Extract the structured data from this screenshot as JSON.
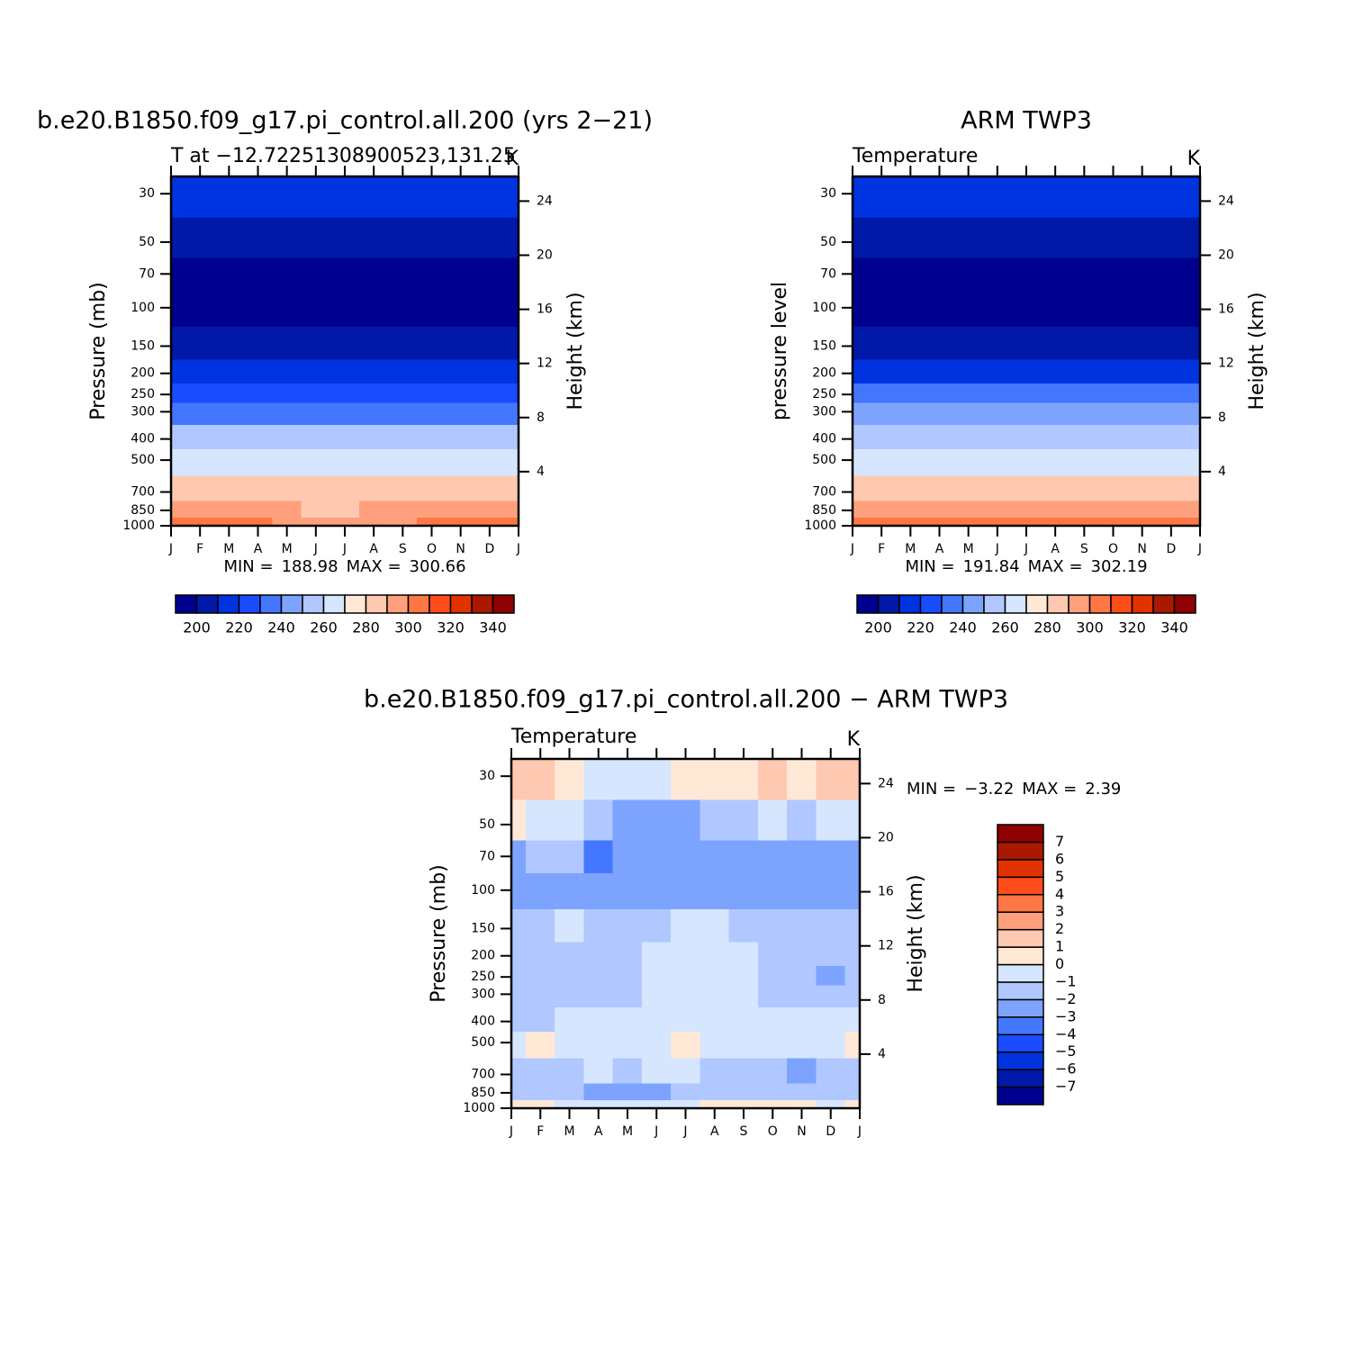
{
  "chart_data": [
    {
      "type": "contour",
      "title": "b.e20.B1850.f09_g17.pi_control.all.200 (yrs 2−21)",
      "subtitle": "T at −12.72251308900523,131.25",
      "units": "K",
      "ylabel": "Pressure (mb)",
      "y2label": "Height (km)",
      "min_label": "MIN =",
      "min": 188.98,
      "max_label": "MAX =",
      "max": 300.66,
      "x": [
        "J",
        "F",
        "M",
        "A",
        "M",
        "J",
        "J",
        "A",
        "S",
        "O",
        "N",
        "D",
        "J"
      ],
      "y": [
        30,
        50,
        70,
        100,
        150,
        200,
        250,
        300,
        400,
        500,
        700,
        850,
        1000
      ],
      "ylim": [
        1000,
        25
      ],
      "log_y": true,
      "yticks": [
        30,
        50,
        70,
        100,
        150,
        200,
        250,
        300,
        400,
        500,
        700,
        850,
        1000
      ],
      "y2ticks": [
        4,
        8,
        12,
        16,
        20,
        24
      ],
      "values": [
        [
          216,
          216,
          215,
          214,
          213,
          212,
          212,
          213,
          214,
          215,
          216,
          216,
          216
        ],
        [
          204,
          204,
          203,
          203,
          202,
          201,
          201,
          201,
          202,
          203,
          203,
          204,
          204
        ],
        [
          196,
          196,
          195,
          195,
          194,
          194,
          193,
          193,
          194,
          195,
          195,
          196,
          196
        ],
        [
          191,
          191,
          190,
          190,
          190,
          190,
          189,
          189,
          190,
          190,
          190,
          191,
          191
        ],
        [
          202,
          202,
          202,
          202,
          201,
          202,
          202,
          202,
          201,
          201,
          202,
          202,
          202
        ],
        [
          217,
          217,
          217,
          217,
          216,
          217,
          217,
          217,
          216,
          216,
          217,
          217,
          217
        ],
        [
          229,
          229,
          229,
          229,
          228,
          229,
          229,
          229,
          228,
          228,
          229,
          229,
          229
        ],
        [
          239,
          239,
          239,
          239,
          238,
          239,
          239,
          239,
          238,
          238,
          239,
          239,
          239
        ],
        [
          255,
          255,
          255,
          255,
          254,
          255,
          255,
          255,
          254,
          254,
          255,
          255,
          255
        ],
        [
          267,
          267,
          267,
          267,
          266,
          267,
          267,
          267,
          266,
          266,
          267,
          267,
          267
        ],
        [
          282,
          282,
          282,
          281,
          281,
          281,
          281,
          281,
          281,
          280,
          281,
          282,
          282
        ],
        [
          291,
          291,
          291,
          291,
          290,
          289,
          289,
          290,
          290,
          291,
          291,
          291,
          291
        ],
        [
          300,
          300,
          300,
          300,
          299,
          299,
          299,
          299,
          299,
          300,
          300,
          300,
          300
        ]
      ],
      "colorbar": {
        "levels": [
          200,
          210,
          220,
          230,
          240,
          250,
          260,
          270,
          280,
          290,
          300,
          310,
          320,
          330,
          340
        ],
        "ticks": [
          200,
          220,
          240,
          260,
          280,
          300,
          320,
          340
        ],
        "colors": [
          "#00008f",
          "#0019a8",
          "#0033e0",
          "#1a4cff",
          "#4477ff",
          "#7ca4ff",
          "#b0c8ff",
          "#d6e6ff",
          "#ffe8d6",
          "#ffc8b0",
          "#ffa07c",
          "#ff7744",
          "#ff4d1a",
          "#e03300",
          "#a81900",
          "#8f0000"
        ]
      }
    },
    {
      "type": "contour",
      "title": "ARM TWP3",
      "subtitle": "Temperature",
      "units": "K",
      "ylabel": "pressure level",
      "y2label": "Height (km)",
      "min_label": "MIN =",
      "min": 191.84,
      "max_label": "MAX =",
      "max": 302.19,
      "x": [
        "J",
        "F",
        "M",
        "A",
        "M",
        "J",
        "J",
        "A",
        "S",
        "O",
        "N",
        "D",
        "J"
      ],
      "y": [
        30,
        50,
        70,
        100,
        150,
        200,
        250,
        300,
        400,
        500,
        700,
        850,
        1000
      ],
      "ylim": [
        1000,
        25
      ],
      "log_y": true,
      "yticks": [
        30,
        50,
        70,
        100,
        150,
        200,
        250,
        300,
        400,
        500,
        700,
        850,
        1000
      ],
      "y2ticks": [
        4,
        8,
        12,
        16,
        20,
        24
      ],
      "values": [
        [
          215,
          215,
          214,
          213,
          212,
          211,
          211,
          211,
          212,
          213,
          214,
          215,
          215
        ],
        [
          204,
          204,
          204,
          203,
          202,
          202,
          201,
          200,
          201,
          202,
          203,
          204,
          204
        ],
        [
          196,
          196,
          196,
          195,
          195,
          195,
          194,
          193,
          194,
          195,
          196,
          196,
          196
        ],
        [
          192,
          192,
          192,
          191,
          191,
          191,
          191,
          190,
          191,
          191,
          192,
          192,
          192
        ],
        [
          204,
          204,
          204,
          204,
          204,
          204,
          204,
          204,
          204,
          204,
          204,
          204,
          204
        ],
        [
          218,
          218,
          218,
          218,
          218,
          218,
          218,
          218,
          218,
          218,
          218,
          218,
          218
        ],
        [
          230,
          230,
          230,
          230,
          230,
          230,
          230,
          230,
          230,
          230,
          230,
          230,
          230
        ],
        [
          240,
          240,
          240,
          240,
          240,
          240,
          240,
          240,
          240,
          240,
          240,
          240,
          240
        ],
        [
          256,
          256,
          256,
          256,
          256,
          256,
          256,
          256,
          256,
          256,
          256,
          256,
          256
        ],
        [
          267,
          267,
          267,
          267,
          267,
          267,
          267,
          267,
          267,
          267,
          267,
          267,
          267
        ],
        [
          283,
          283,
          283,
          283,
          282,
          282,
          282,
          282,
          282,
          282,
          283,
          283,
          283
        ],
        [
          292,
          292,
          292,
          292,
          292,
          291,
          291,
          291,
          291,
          292,
          292,
          292,
          292
        ],
        [
          301,
          301,
          300,
          300,
          300,
          300,
          300,
          300,
          300,
          300,
          301,
          301,
          301
        ]
      ],
      "colorbar": {
        "levels": [
          200,
          210,
          220,
          230,
          240,
          250,
          260,
          270,
          280,
          290,
          300,
          310,
          320,
          330,
          340
        ],
        "ticks": [
          200,
          220,
          240,
          260,
          280,
          300,
          320,
          340
        ],
        "colors": [
          "#00008f",
          "#0019a8",
          "#0033e0",
          "#1a4cff",
          "#4477ff",
          "#7ca4ff",
          "#b0c8ff",
          "#d6e6ff",
          "#ffe8d6",
          "#ffc8b0",
          "#ffa07c",
          "#ff7744",
          "#ff4d1a",
          "#e03300",
          "#a81900",
          "#8f0000"
        ]
      }
    },
    {
      "type": "contour",
      "title": "b.e20.B1850.f09_g17.pi_control.all.200 − ARM TWP3",
      "subtitle": "Temperature",
      "units": "K",
      "ylabel": "Pressure (mb)",
      "y2label": "Height (km)",
      "min_label": "MIN =",
      "min": {
        "value": -3.22,
        "label": "−3.22"
      },
      "max_label": "MAX =",
      "max": 2.39,
      "x": [
        "J",
        "F",
        "M",
        "A",
        "M",
        "J",
        "J",
        "A",
        "S",
        "O",
        "N",
        "D",
        "J"
      ],
      "y": [
        30,
        50,
        70,
        100,
        150,
        200,
        250,
        300,
        400,
        500,
        700,
        850,
        1000
      ],
      "ylim": [
        1000,
        25
      ],
      "log_y": true,
      "yticks": [
        30,
        50,
        70,
        100,
        150,
        200,
        250,
        300,
        400,
        500,
        700,
        850,
        1000
      ],
      "y2ticks": [
        4,
        8,
        12,
        16,
        20,
        24
      ],
      "values": [
        [
          1.2,
          1.5,
          0.3,
          -0.8,
          -0.6,
          -0.5,
          0.2,
          0.5,
          0.6,
          1.3,
          0.6,
          1.5,
          1.2
        ],
        [
          0.5,
          -0.3,
          -0.8,
          -1.5,
          -2.3,
          -2.2,
          -2.1,
          -1.8,
          -1.3,
          -0.9,
          -1.2,
          -0.5,
          -0.8
        ],
        [
          -2.2,
          -1.9,
          -1.7,
          -3.1,
          -2.6,
          -2.4,
          -2.5,
          -2.3,
          -2.6,
          -2.5,
          -2.4,
          -2.6,
          -2.3
        ],
        [
          -2.6,
          -2.5,
          -2.7,
          -2.5,
          -2.8,
          -2.6,
          -2.1,
          -2.3,
          -2.5,
          -2.2,
          -2.4,
          -2.6,
          -2.7
        ],
        [
          -1.6,
          -1.3,
          -0.9,
          -1.2,
          -1.8,
          -1.5,
          -0.8,
          -0.6,
          -1.4,
          -1.5,
          -1.6,
          -1.7,
          -1.8
        ],
        [
          -1.7,
          -1.5,
          -1.3,
          -1.1,
          -1.6,
          -0.6,
          -0.5,
          -0.5,
          -0.7,
          -1.6,
          -1.7,
          -1.9,
          -1.6
        ],
        [
          -1.6,
          -1.5,
          -1.4,
          -1.2,
          -1.5,
          -0.7,
          -0.5,
          -0.6,
          -0.8,
          -1.5,
          -1.6,
          -2.2,
          -1.6
        ],
        [
          -1.5,
          -1.4,
          -1.3,
          -1.2,
          -1.3,
          -0.8,
          -0.6,
          -0.7,
          -0.8,
          -1.3,
          -1.5,
          -1.6,
          -1.5
        ],
        [
          -1.2,
          -1.1,
          -0.8,
          -0.7,
          -0.6,
          -0.5,
          -0.6,
          -0.7,
          -0.6,
          -0.8,
          -0.7,
          -0.8,
          -0.9
        ],
        [
          -0.6,
          0.2,
          -0.5,
          -0.6,
          -0.5,
          -0.6,
          0.3,
          -0.4,
          -0.5,
          -0.6,
          -0.6,
          -0.7,
          0.1
        ],
        [
          -1.3,
          -1.4,
          -1.2,
          -1.0,
          -1.3,
          -0.8,
          -0.6,
          -1.1,
          -1.3,
          -1.5,
          -2.1,
          -1.6,
          -1.4
        ],
        [
          -1.5,
          -1.6,
          -1.8,
          -2.3,
          -2.4,
          -2.2,
          -1.5,
          -1.3,
          -1.6,
          -1.8,
          -1.7,
          -1.6,
          -1.5
        ],
        [
          0.3,
          0.2,
          -0.4,
          -0.6,
          -0.8,
          -0.7,
          -0.5,
          0.1,
          0.3,
          0.2,
          0.1,
          -0.2,
          0.3
        ]
      ],
      "colorbar": {
        "levels": [
          -7,
          -6,
          -5,
          -4,
          -3,
          -2,
          -1,
          0,
          1,
          2,
          3,
          4,
          5,
          6,
          7
        ],
        "ticks": [
          {
            "value": -7,
            "label": "−7"
          },
          {
            "value": -6,
            "label": "−6"
          },
          {
            "value": -5,
            "label": "−5"
          },
          {
            "value": -4,
            "label": "−4"
          },
          {
            "value": -3,
            "label": "−3"
          },
          {
            "value": -2,
            "label": "−2"
          },
          {
            "value": -1,
            "label": "−1"
          },
          0,
          1,
          2,
          3,
          4,
          5,
          6,
          7
        ],
        "colors": [
          "#00008f",
          "#0019a8",
          "#0033e0",
          "#1a4cff",
          "#4477ff",
          "#7ca4ff",
          "#b0c8ff",
          "#d6e6ff",
          "#ffe8d6",
          "#ffc8b0",
          "#ffa07c",
          "#ff7744",
          "#ff4d1a",
          "#e03300",
          "#a81900",
          "#8f0000"
        ]
      }
    }
  ]
}
